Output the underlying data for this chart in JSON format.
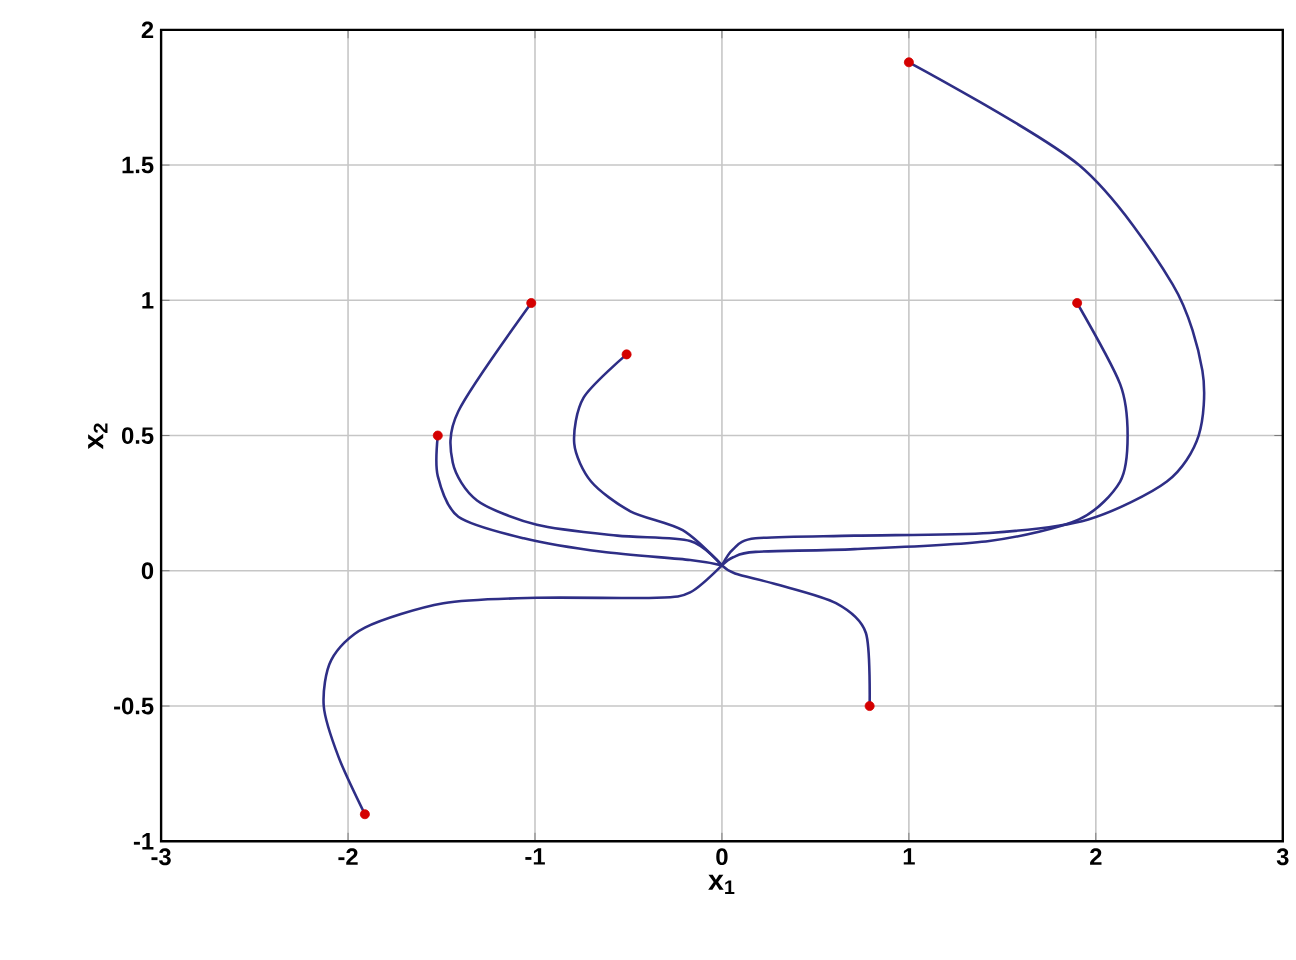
{
  "chart_data": {
    "type": "line",
    "xlabel": "x$_{1}$",
    "ylabel": "x$_{2}$",
    "xlim": [
      -3,
      3
    ],
    "ylim": [
      -1,
      2
    ],
    "xticks": [
      -3,
      -2,
      -1,
      0,
      1,
      2,
      3
    ],
    "yticks": [
      -1,
      -0.5,
      0,
      0.5,
      1,
      1.5,
      2
    ],
    "grid": true,
    "line_style": "solid",
    "series": [
      {
        "color": "#2e2e86",
        "x": [
          -1.02,
          -1.41,
          -1.44,
          -1.31,
          -0.99,
          -0.56,
          -0.17,
          0
        ],
        "values": [
          0.99,
          0.59,
          0.4,
          0.26,
          0.17,
          0.13,
          0.11,
          0.02
        ]
      },
      {
        "color": "#2e2e86",
        "x": [
          -1.52,
          -1.52,
          -1.41,
          -1.06,
          -0.64,
          -0.17,
          0
        ],
        "values": [
          0.5,
          0.35,
          0.2,
          0.12,
          0.07,
          0.04,
          0.02
        ]
      },
      {
        "color": "#2e2e86",
        "x": [
          -0.51,
          -0.74,
          -0.79,
          -0.7,
          -0.49,
          -0.21,
          0
        ],
        "values": [
          0.8,
          0.64,
          0.47,
          0.33,
          0.22,
          0.15,
          0.02
        ]
      },
      {
        "color": "#2e2e86",
        "x": [
          -1.91,
          -2.05,
          -2.13,
          -2.09,
          -1.91,
          -1.49,
          -0.99,
          -0.35,
          -0.17,
          0
        ],
        "values": [
          -0.9,
          -0.69,
          -0.5,
          -0.33,
          -0.21,
          -0.12,
          -0.1,
          -0.1,
          -0.08,
          0.02
        ]
      },
      {
        "color": "#2e2e86",
        "x": [
          0.79,
          0.77,
          0.61,
          0.29,
          0.07,
          0
        ],
        "values": [
          -0.5,
          -0.23,
          -0.12,
          -0.05,
          -0.01,
          0.02
        ]
      },
      {
        "color": "#2e2e86",
        "x": [
          1.0,
          1.91,
          2.41,
          2.57,
          2.55,
          2.38,
          1.96,
          1.43,
          0.71,
          0.18,
          0.06,
          0
        ],
        "values": [
          1.88,
          1.5,
          1.06,
          0.74,
          0.5,
          0.33,
          0.19,
          0.14,
          0.13,
          0.12,
          0.08,
          0.02
        ]
      },
      {
        "color": "#2e2e86",
        "x": [
          1.9,
          2.13,
          2.17,
          2.13,
          1.91,
          1.43,
          0.71,
          0.18,
          0.06,
          0
        ],
        "values": [
          0.99,
          0.69,
          0.5,
          0.33,
          0.19,
          0.11,
          0.08,
          0.07,
          0.05,
          0.02
        ]
      },
      {
        "type": "scatter",
        "marker": "circle",
        "color": "#d40000",
        "x": [
          -1.02,
          -1.52,
          -0.51,
          -1.91,
          0.79,
          1.0,
          1.9
        ],
        "values": [
          0.99,
          0.5,
          0.8,
          -0.9,
          -0.5,
          1.88,
          0.99
        ]
      }
    ]
  }
}
